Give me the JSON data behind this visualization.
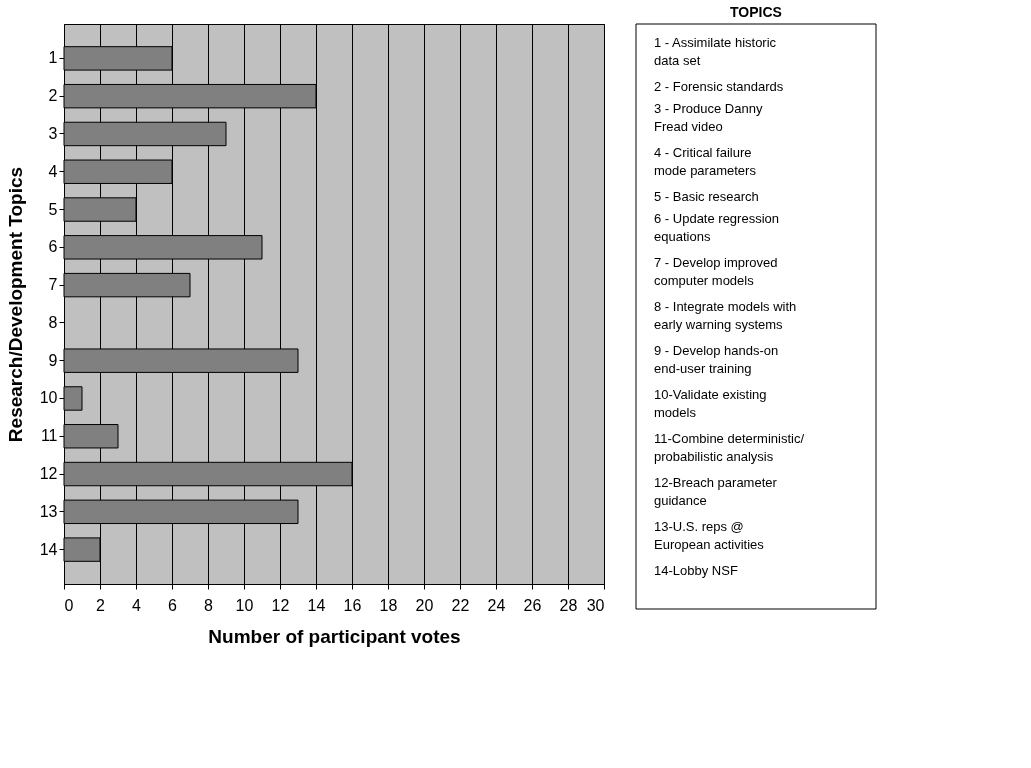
{
  "chart_data": [
    {
      "type": "bar",
      "orientation": "horizontal",
      "xlabel": "Number of participant votes",
      "ylabel": "Research/Development Topics",
      "categories": [
        "1",
        "2",
        "3",
        "4",
        "5",
        "6",
        "7",
        "8",
        "9",
        "10",
        "11",
        "12",
        "13",
        "14"
      ],
      "values": [
        6,
        14,
        9,
        6,
        4,
        11,
        7,
        0,
        13,
        1,
        3,
        16,
        13,
        2
      ],
      "color": "#808080",
      "xlim": [
        0,
        30
      ],
      "xticks": [
        0,
        2,
        4,
        6,
        8,
        10,
        12,
        14,
        16,
        18,
        20,
        22,
        24,
        26,
        28,
        30
      ],
      "grid": "x"
    },
    {
      "type": "other",
      "title": "TOPICS",
      "annotations": [
        "1 - Assimilate historic\n   data set",
        "2 - Forensic standards",
        "3 - Produce Danny\n   Fread video",
        "4 - Critical failure\n    mode parameters",
        "5 - Basic research",
        "6 - Update regression\n   equations",
        "7 - Develop improved\n   computer models",
        "8 - Integrate models with\n   early warning systems",
        "9 - Develop hands-on\n   end-user training",
        "10-Validate existing\n   models",
        "11-Combine deterministic/\n    probabilistic analysis",
        "12-Breach parameter\n    guidance",
        "13-U.S. reps @\n    European activities",
        "14-Lobby NSF"
      ]
    }
  ]
}
